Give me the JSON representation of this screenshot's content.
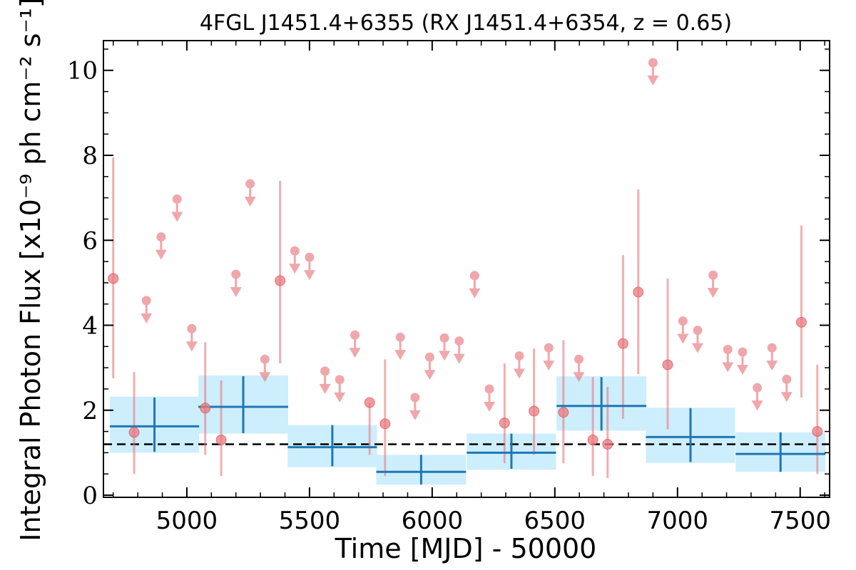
{
  "chart_data": {
    "type": "scatter",
    "title": "4FGL J1451.4+6355 (RX J1451.4+6354, z = 0.65)",
    "xlabel": "Time [MJD] - 50000",
    "ylabel": "Integral Photon Flux [x10⁻⁹ ph cm⁻² s⁻¹]",
    "xlim": [
      4660,
      7620
    ],
    "ylim": [
      -0.05,
      10.7
    ],
    "x_ticks": [
      5000,
      5500,
      6000,
      6500,
      7000,
      7500
    ],
    "y_ticks": [
      0,
      2,
      4,
      6,
      8,
      10
    ],
    "x_tick_labels": [
      "5000",
      "5500",
      "6000",
      "6500",
      "7000",
      "7500"
    ],
    "y_tick_labels": [
      "0",
      "2",
      "4",
      "6",
      "8",
      "10"
    ],
    "grid": false,
    "reference_line": {
      "y": 1.2,
      "style": "dashed",
      "color": "#000000"
    },
    "colors": {
      "detection": "#e8797f",
      "binned": "#1f77b4",
      "binned_band": "#cdeefc"
    },
    "binned": [
      {
        "x": 4868,
        "xerr": 182,
        "y": 1.62,
        "ylo": 1.02,
        "yhi": 2.3,
        "band": [
          1.0,
          2.32
        ]
      },
      {
        "x": 5230,
        "xerr": 183,
        "y": 2.08,
        "ylo": 1.46,
        "yhi": 2.8,
        "band": [
          1.45,
          2.82
        ]
      },
      {
        "x": 5593,
        "xerr": 182,
        "y": 1.13,
        "ylo": 0.68,
        "yhi": 1.65,
        "band": [
          0.66,
          1.65
        ]
      },
      {
        "x": 5955,
        "xerr": 183,
        "y": 0.55,
        "ylo": 0.25,
        "yhi": 0.95,
        "band": [
          0.25,
          0.95
        ]
      },
      {
        "x": 6323,
        "xerr": 182,
        "y": 1.0,
        "ylo": 0.62,
        "yhi": 1.45,
        "band": [
          0.6,
          1.45
        ]
      },
      {
        "x": 6690,
        "xerr": 183,
        "y": 2.1,
        "ylo": 1.52,
        "yhi": 2.78,
        "band": [
          1.52,
          2.8
        ]
      },
      {
        "x": 7053,
        "xerr": 182,
        "y": 1.37,
        "ylo": 0.78,
        "yhi": 2.05,
        "band": [
          0.76,
          2.06
        ]
      },
      {
        "x": 7420,
        "xerr": 183,
        "y": 0.97,
        "ylo": 0.55,
        "yhi": 1.48,
        "band": [
          0.55,
          1.48
        ]
      }
    ],
    "detections": [
      {
        "x": 4700,
        "y": 5.1,
        "ylo": 2.75,
        "yhi": 7.95
      },
      {
        "x": 4785,
        "y": 1.48,
        "ylo": 0.5,
        "yhi": 2.9
      },
      {
        "x": 5075,
        "y": 2.05,
        "ylo": 0.95,
        "yhi": 3.6
      },
      {
        "x": 5140,
        "y": 1.3,
        "ylo": 0.45,
        "yhi": 2.7
      },
      {
        "x": 5380,
        "y": 5.05,
        "ylo": 3.1,
        "yhi": 7.4
      },
      {
        "x": 5745,
        "y": 2.18,
        "ylo": 0.95,
        "yhi": 2.18
      },
      {
        "x": 5808,
        "y": 1.68,
        "ylo": 0.45,
        "yhi": 3.2
      },
      {
        "x": 6295,
        "y": 1.7,
        "ylo": 0.75,
        "yhi": 3.1
      },
      {
        "x": 6415,
        "y": 1.98,
        "ylo": 0.95,
        "yhi": 3.45
      },
      {
        "x": 6535,
        "y": 1.95,
        "ylo": 0.75,
        "yhi": 3.65
      },
      {
        "x": 6655,
        "y": 1.3,
        "ylo": 0.45,
        "yhi": 2.78
      },
      {
        "x": 6715,
        "y": 1.2,
        "ylo": 0.4,
        "yhi": 2.55
      },
      {
        "x": 6778,
        "y": 3.57,
        "ylo": 1.8,
        "yhi": 5.65
      },
      {
        "x": 6840,
        "y": 4.78,
        "ylo": 2.85,
        "yhi": 7.2
      },
      {
        "x": 6960,
        "y": 3.07,
        "ylo": 1.55,
        "yhi": 5.1
      },
      {
        "x": 7505,
        "y": 4.07,
        "ylo": 2.3,
        "yhi": 6.35
      },
      {
        "x": 7570,
        "y": 1.5,
        "ylo": 0.5,
        "yhi": 3.07
      }
    ],
    "upper_limits": [
      {
        "x": 4835,
        "y": 4.58
      },
      {
        "x": 4895,
        "y": 6.08
      },
      {
        "x": 4960,
        "y": 6.97
      },
      {
        "x": 5020,
        "y": 3.92
      },
      {
        "x": 5200,
        "y": 5.2
      },
      {
        "x": 5258,
        "y": 7.33
      },
      {
        "x": 5318,
        "y": 3.2
      },
      {
        "x": 5440,
        "y": 5.75
      },
      {
        "x": 5500,
        "y": 5.6
      },
      {
        "x": 5563,
        "y": 2.92
      },
      {
        "x": 5623,
        "y": 2.72
      },
      {
        "x": 5685,
        "y": 3.77
      },
      {
        "x": 5870,
        "y": 3.72
      },
      {
        "x": 5930,
        "y": 2.3
      },
      {
        "x": 5990,
        "y": 3.25
      },
      {
        "x": 6050,
        "y": 3.7
      },
      {
        "x": 6110,
        "y": 3.63
      },
      {
        "x": 6173,
        "y": 5.17
      },
      {
        "x": 6233,
        "y": 2.5
      },
      {
        "x": 6355,
        "y": 3.28
      },
      {
        "x": 6475,
        "y": 3.47
      },
      {
        "x": 6598,
        "y": 3.2
      },
      {
        "x": 6900,
        "y": 10.18
      },
      {
        "x": 7022,
        "y": 4.1
      },
      {
        "x": 7082,
        "y": 3.88
      },
      {
        "x": 7145,
        "y": 5.18
      },
      {
        "x": 7205,
        "y": 3.43
      },
      {
        "x": 7265,
        "y": 3.37
      },
      {
        "x": 7325,
        "y": 2.53
      },
      {
        "x": 7385,
        "y": 3.47
      },
      {
        "x": 7445,
        "y": 2.73
      }
    ]
  }
}
